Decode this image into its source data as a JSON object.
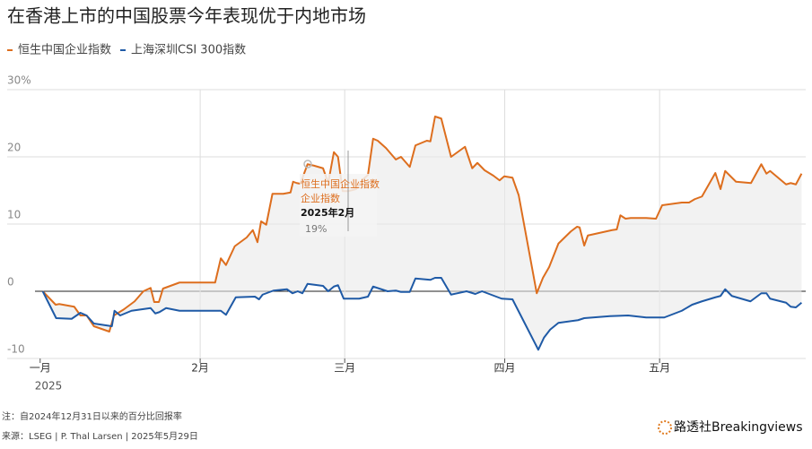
{
  "chart_data": {
    "type": "line",
    "title": "在香港上市的中国股票今年表现优于内地市场",
    "xlim": [
      0,
      150
    ],
    "xticks": [
      {
        "value": 1,
        "label": "一月"
      },
      {
        "value": 32,
        "label": "2月"
      },
      {
        "value": 60,
        "label": "三月"
      },
      {
        "value": 91,
        "label": "四月"
      },
      {
        "value": 121,
        "label": "五月"
      }
    ],
    "x_year_label": "2025",
    "ylim": [
      -10,
      30
    ],
    "yticks": [
      -10,
      0,
      10,
      20,
      {
        "value": 30,
        "label": "30%"
      }
    ],
    "grid": true,
    "series": [
      {
        "name": "恒生中国企业指数",
        "color": "#dd6e1e",
        "x": [
          1.5,
          4.0,
          4.7,
          7.6,
          8.8,
          10.0,
          11.4,
          14.4,
          15.3,
          17.2,
          19.3,
          21.0,
          22.4,
          23.1,
          24.0,
          24.8,
          28.0,
          34.9,
          36.0,
          37.0,
          38.7,
          41.0,
          42.2,
          43.1,
          43.8,
          44.8,
          46.0,
          48.1,
          49.5,
          50.0,
          50.7,
          51.4,
          52.8,
          54.0,
          55.8,
          56.8,
          57.9,
          58.7,
          59.6,
          60.7,
          62.2,
          63.6,
          64.5,
          65.5,
          66.4,
          68.0,
          69.9,
          70.9,
          72.6,
          73.7,
          75.9,
          76.6,
          77.5,
          78.7,
          80.6,
          83.3,
          84.7,
          85.7,
          87.1,
          88.8,
          90.0,
          90.9,
          92.5,
          93.7,
          97.2,
          98.4,
          99.6,
          101.4,
          103.8,
          105.0,
          105.5,
          106.4,
          107.1,
          111.8,
          112.7,
          113.4,
          114.4,
          115.4,
          118.4,
          120.3,
          121.5,
          125.3,
          126.7,
          127.8,
          129.2,
          131.8,
          132.8,
          133.7,
          135.8,
          138.7,
          140.7,
          141.7,
          142.4,
          145.5,
          146.4,
          147.4,
          148.5
        ],
        "values": [
          0,
          -2.0,
          -1.9,
          -2.3,
          -3.6,
          -3.6,
          -5.2,
          -6.0,
          -3.6,
          -2.7,
          -1.5,
          0,
          0.5,
          -1.6,
          -1.6,
          0.4,
          1.3,
          1.3,
          4.9,
          3.9,
          6.7,
          8.0,
          9.1,
          7.3,
          10.4,
          9.9,
          14.5,
          14.5,
          14.7,
          16.3,
          16.1,
          16.0,
          18.9,
          18.7,
          18.3,
          16.1,
          20.7,
          20.0,
          14.9,
          14.9,
          15.2,
          16.7,
          17.3,
          22.7,
          22.4,
          21.3,
          19.6,
          20.0,
          18.5,
          21.7,
          22.4,
          22.3,
          26.0,
          25.7,
          20.0,
          21.5,
          18.3,
          19.1,
          18.0,
          17.2,
          16.5,
          17.1,
          16.9,
          14.3,
          -0.3,
          2.0,
          3.6,
          7.1,
          8.9,
          9.6,
          9.5,
          6.8,
          8.3,
          9.1,
          9.2,
          11.3,
          10.8,
          10.9,
          10.9,
          10.8,
          12.8,
          13.2,
          13.2,
          13.7,
          14.1,
          17.6,
          15.2,
          17.9,
          16.3,
          16.1,
          18.9,
          17.5,
          17.9,
          15.9,
          16.1,
          15.9,
          17.5
        ]
      },
      {
        "name": "上海深圳CSI 300指数",
        "color": "#1f5aa6",
        "x": [
          1.5,
          4.1,
          7.1,
          8.8,
          10.0,
          11.4,
          14.9,
          15.4,
          16.5,
          18.7,
          22.4,
          23.3,
          24.1,
          25.4,
          28.0,
          36.0,
          37.0,
          38.9,
          42.6,
          43.4,
          44.1,
          46.2,
          48.8,
          49.9,
          50.9,
          51.8,
          52.8,
          55.8,
          56.8,
          57.9,
          58.7,
          59.8,
          62.8,
          64.5,
          65.5,
          68.3,
          69.9,
          70.9,
          72.6,
          73.7,
          76.6,
          77.5,
          78.7,
          80.6,
          83.6,
          85.3,
          86.6,
          90.4,
          92.5,
          97.5,
          98.6,
          99.8,
          101.4,
          105.2,
          106.4,
          111.4,
          114.9,
          118.4,
          121.9,
          125.3,
          127.3,
          129.2,
          131.8,
          132.8,
          133.7,
          135.0,
          138.6,
          140.7,
          141.7,
          142.4,
          145.5,
          146.4,
          147.4,
          148.5
        ],
        "values": [
          0,
          -4.0,
          -4.1,
          -3.2,
          -3.6,
          -4.8,
          -5.2,
          -2.9,
          -3.6,
          -2.9,
          -2.5,
          -3.3,
          -3.1,
          -2.5,
          -2.9,
          -2.9,
          -3.5,
          -0.9,
          -0.8,
          -1.2,
          -0.5,
          0.1,
          0.3,
          -0.3,
          0,
          -0.3,
          1.1,
          0.8,
          0,
          0.7,
          0.9,
          -1.1,
          -1.1,
          -0.8,
          0.7,
          0,
          0.1,
          -0.1,
          -0.1,
          1.9,
          1.7,
          2.0,
          2.0,
          -0.5,
          0,
          -0.4,
          0,
          -1.1,
          -1.2,
          -8.7,
          -6.9,
          -5.7,
          -4.7,
          -4.3,
          -4.0,
          -3.7,
          -3.6,
          -3.9,
          -3.9,
          -2.9,
          -2.0,
          -1.5,
          -0.9,
          -0.7,
          0.3,
          -0.7,
          -1.5,
          -0.3,
          -0.3,
          -1.1,
          -1.7,
          -2.3,
          -2.4,
          -1.7
        ]
      }
    ],
    "tooltip": {
      "series": "恒生中国企业指数",
      "series_wrap": "企业指数",
      "date": "2025年2月",
      "value_label": "19%"
    },
    "note": "注：自2024年12月31日以来的百分比回报率",
    "source": "来源：LSEG | P. Thal Larsen | 2025年5月29日",
    "logo": "路透社Breakingviews"
  }
}
